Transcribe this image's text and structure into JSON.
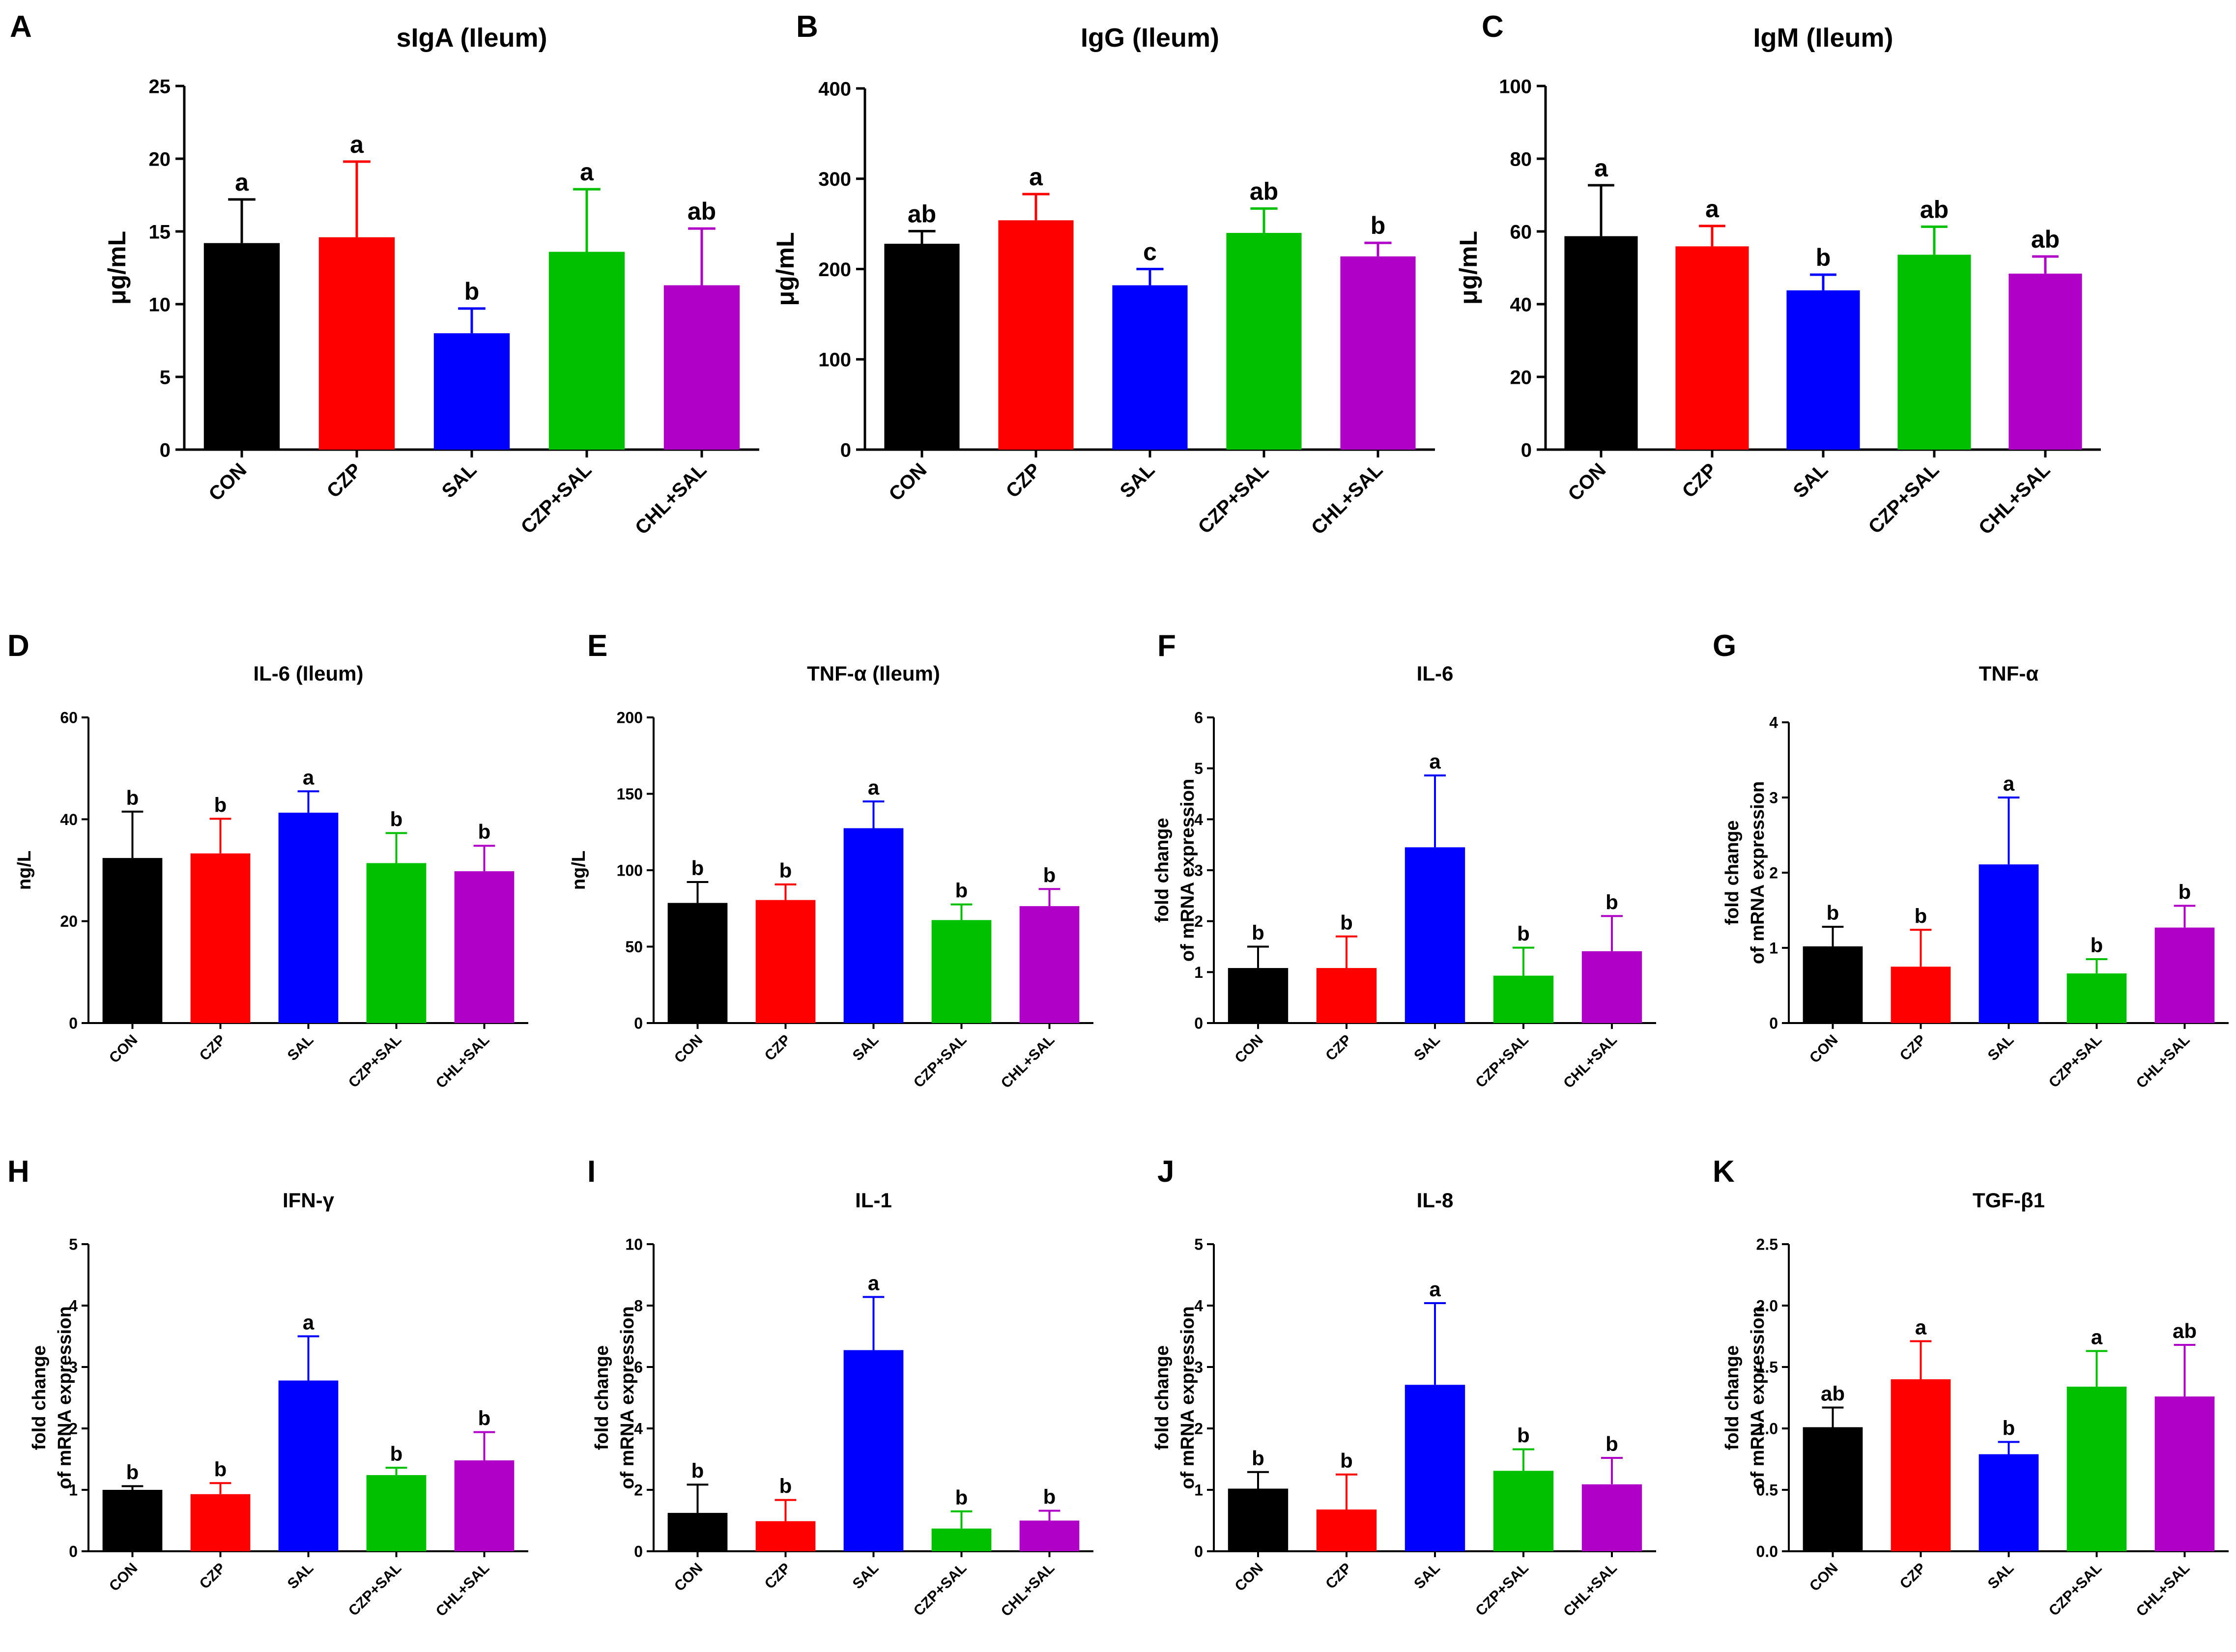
{
  "colors": {
    "CON": "#000000",
    "CZP": "#ff0000",
    "SAL": "#0000ff",
    "CZP+SAL": "#00c000",
    "CHL+SAL": "#b000c8"
  },
  "chart_data": [
    {
      "panel": "A",
      "type": "bar",
      "title": "sIgA (Ileum)",
      "ylabel": [
        "μg/mL"
      ],
      "categories": [
        "CON",
        "CZP",
        "SAL",
        "CZP+SAL",
        "CHL+SAL"
      ],
      "values": [
        14.2,
        14.6,
        8.0,
        13.6,
        11.3
      ],
      "errors": [
        3.0,
        5.2,
        1.7,
        4.3,
        3.9
      ],
      "letters": [
        "a",
        "a",
        "b",
        "a",
        "ab"
      ],
      "ylim": [
        0,
        25
      ],
      "ticks": [
        0,
        5,
        10,
        15,
        20,
        25
      ],
      "tick_labels": [
        "0",
        "5",
        "10",
        "15",
        "20",
        "25"
      ]
    },
    {
      "panel": "B",
      "type": "bar",
      "title": "IgG (Ileum)",
      "ylabel": [
        "μg/mL"
      ],
      "categories": [
        "CON",
        "CZP",
        "SAL",
        "CZP+SAL",
        "CHL+SAL"
      ],
      "values": [
        228,
        254,
        182,
        240,
        214
      ],
      "errors": [
        14,
        29,
        18,
        27,
        15
      ],
      "letters": [
        "ab",
        "a",
        "c",
        "ab",
        "b"
      ],
      "ylim": [
        0,
        400
      ],
      "ticks": [
        0,
        100,
        200,
        300,
        400
      ],
      "tick_labels": [
        "0",
        "100",
        "200",
        "300",
        "400"
      ]
    },
    {
      "panel": "C",
      "type": "bar",
      "title": "IgM (Ileum)",
      "ylabel": [
        "μg/mL"
      ],
      "categories": [
        "CON",
        "CZP",
        "SAL",
        "CZP+SAL",
        "CHL+SAL"
      ],
      "values": [
        58.7,
        55.9,
        43.8,
        53.6,
        48.4
      ],
      "errors": [
        14.0,
        5.6,
        4.3,
        7.7,
        4.7
      ],
      "letters": [
        "a",
        "a",
        "b",
        "ab",
        "ab"
      ],
      "ylim": [
        0,
        100
      ],
      "ticks": [
        0,
        20,
        40,
        60,
        80,
        100
      ],
      "tick_labels": [
        "0",
        "20",
        "40",
        "60",
        "80",
        "100"
      ]
    },
    {
      "panel": "D",
      "type": "bar",
      "title": "IL-6 (Ileum)",
      "ylabel": [
        "ng/L"
      ],
      "categories": [
        "CON",
        "CZP",
        "SAL",
        "CZP+SAL",
        "CHL+SAL"
      ],
      "values": [
        32.4,
        33.3,
        41.3,
        31.4,
        29.8
      ],
      "errors": [
        9.1,
        6.8,
        4.2,
        5.9,
        5.0
      ],
      "letters": [
        "b",
        "b",
        "a",
        "b",
        "b"
      ],
      "ylim": [
        0,
        60
      ],
      "ticks": [
        0,
        20,
        40,
        60
      ],
      "tick_labels": [
        "0",
        "20",
        "40",
        "60"
      ]
    },
    {
      "panel": "E",
      "type": "bar",
      "title": "TNF-α (Ileum)",
      "ylabel": [
        "ng/L"
      ],
      "categories": [
        "CON",
        "CZP",
        "SAL",
        "CZP+SAL",
        "CHL+SAL"
      ],
      "values": [
        78.6,
        80.5,
        127.5,
        67.4,
        76.5
      ],
      "errors": [
        13.7,
        10.2,
        17.5,
        10.2,
        11.2
      ],
      "letters": [
        "b",
        "b",
        "a",
        "b",
        "b"
      ],
      "ylim": [
        0,
        200
      ],
      "ticks": [
        0,
        50,
        100,
        150,
        200
      ],
      "tick_labels": [
        "0",
        "50",
        "100",
        "150",
        "200"
      ]
    },
    {
      "panel": "F",
      "type": "bar",
      "title": "IL-6",
      "ylabel": [
        "fold change",
        "of mRNA expression"
      ],
      "categories": [
        "CON",
        "CZP",
        "SAL",
        "CZP+SAL",
        "CHL+SAL"
      ],
      "values": [
        1.08,
        1.08,
        3.45,
        0.93,
        1.41
      ],
      "errors": [
        0.42,
        0.62,
        1.41,
        0.55,
        0.69
      ],
      "letters": [
        "b",
        "b",
        "a",
        "b",
        "b"
      ],
      "ylim": [
        0,
        6
      ],
      "ticks": [
        0,
        1,
        2,
        3,
        4,
        5,
        6
      ],
      "tick_labels": [
        "0",
        "1",
        "2",
        "3",
        "4",
        "5",
        "6"
      ]
    },
    {
      "panel": "G",
      "type": "bar",
      "title": "TNF-α",
      "ylabel": [
        "fold change",
        "of mRNA expression"
      ],
      "categories": [
        "CON",
        "CZP",
        "SAL",
        "CZP+SAL",
        "CHL+SAL"
      ],
      "values": [
        1.02,
        0.75,
        2.11,
        0.66,
        1.27
      ],
      "errors": [
        0.26,
        0.49,
        0.89,
        0.19,
        0.29
      ],
      "letters": [
        "b",
        "b",
        "a",
        "b",
        "b"
      ],
      "ylim": [
        0,
        4
      ],
      "ticks": [
        0,
        1,
        2,
        3,
        4
      ],
      "tick_labels": [
        "0",
        "1",
        "2",
        "3",
        "4"
      ]
    },
    {
      "panel": "H",
      "type": "bar",
      "title": "IFN-γ",
      "ylabel": [
        "fold change",
        "of mRNA expression"
      ],
      "categories": [
        "CON",
        "CZP",
        "SAL",
        "CZP+SAL",
        "CHL+SAL"
      ],
      "values": [
        1.0,
        0.93,
        2.78,
        1.24,
        1.48
      ],
      "errors": [
        0.06,
        0.18,
        0.72,
        0.12,
        0.46
      ],
      "letters": [
        "b",
        "b",
        "a",
        "b",
        "b"
      ],
      "ylim": [
        0,
        5
      ],
      "ticks": [
        0,
        1,
        2,
        3,
        4,
        5
      ],
      "tick_labels": [
        "0",
        "1",
        "2",
        "3",
        "4",
        "5"
      ]
    },
    {
      "panel": "I",
      "type": "bar",
      "title": "IL-1",
      "ylabel": [
        "fold change",
        "of mRNA expression"
      ],
      "categories": [
        "CON",
        "CZP",
        "SAL",
        "CZP+SAL",
        "CHL+SAL"
      ],
      "values": [
        1.25,
        0.98,
        6.55,
        0.74,
        1.0
      ],
      "errors": [
        0.92,
        0.69,
        1.73,
        0.56,
        0.32
      ],
      "letters": [
        "b",
        "b",
        "a",
        "b",
        "b"
      ],
      "ylim": [
        0,
        10
      ],
      "ticks": [
        0,
        2,
        4,
        6,
        8,
        10
      ],
      "tick_labels": [
        "0",
        "2",
        "4",
        "6",
        "8",
        "10"
      ]
    },
    {
      "panel": "J",
      "type": "bar",
      "title": "IL-8",
      "ylabel": [
        "fold change",
        "of mRNA expression"
      ],
      "categories": [
        "CON",
        "CZP",
        "SAL",
        "CZP+SAL",
        "CHL+SAL"
      ],
      "values": [
        1.02,
        0.68,
        2.71,
        1.31,
        1.09
      ],
      "errors": [
        0.27,
        0.57,
        1.33,
        0.35,
        0.43
      ],
      "letters": [
        "b",
        "b",
        "a",
        "b",
        "b"
      ],
      "ylim": [
        0,
        5
      ],
      "ticks": [
        0,
        1,
        2,
        3,
        4,
        5
      ],
      "tick_labels": [
        "0",
        "1",
        "2",
        "3",
        "4",
        "5"
      ]
    },
    {
      "panel": "K",
      "type": "bar",
      "title": "TGF-β1",
      "ylabel": [
        "fold change",
        "of mRNA expression"
      ],
      "categories": [
        "CON",
        "CZP",
        "SAL",
        "CZP+SAL",
        "CHL+SAL"
      ],
      "values": [
        1.01,
        1.4,
        0.79,
        1.34,
        1.26
      ],
      "errors": [
        0.16,
        0.31,
        0.1,
        0.29,
        0.42
      ],
      "letters": [
        "ab",
        "a",
        "b",
        "a",
        "ab"
      ],
      "ylim": [
        0,
        2.5
      ],
      "ticks": [
        0,
        0.5,
        1.0,
        1.5,
        2.0,
        2.5
      ],
      "tick_labels": [
        "0.0",
        "0.5",
        "1.0",
        "1.5",
        "2.0",
        "2.5"
      ]
    }
  ]
}
